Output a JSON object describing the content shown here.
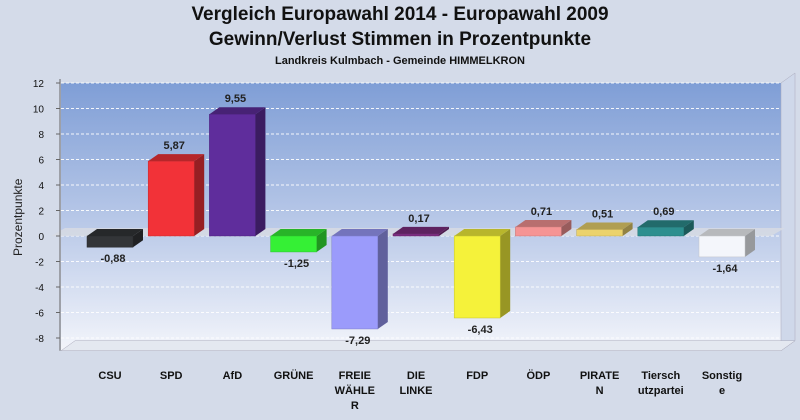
{
  "chart_data": {
    "type": "bar",
    "title": "Vergleich Europawahl 2014 - Europawahl 2009",
    "subtitle": "Gewinn/Verlust Stimmen in Prozentpunkte",
    "caption": "Landkreis Kulmbach - Gemeinde HIMMELKRON",
    "ylabel": "Prozentpunkte",
    "ylim": [
      -9,
      12
    ],
    "yticks": [
      12,
      10,
      8,
      6,
      4,
      2,
      0,
      -2,
      -4,
      -6,
      -8
    ],
    "grid": true,
    "legend": "none",
    "categories": [
      [
        "CSU"
      ],
      [
        "SPD"
      ],
      [
        "AfD"
      ],
      [
        "GRÜNE"
      ],
      [
        "FREIE",
        "WÄHLE",
        "R"
      ],
      [
        "DIE",
        "LINKE"
      ],
      [
        "FDP"
      ],
      [
        "ÖDP"
      ],
      [
        "PIRATE",
        "N"
      ],
      [
        "Tiersch",
        "utzpartei"
      ],
      [
        "Sonstig",
        "e"
      ]
    ],
    "values": [
      -0.88,
      5.87,
      9.55,
      -1.25,
      -7.29,
      0.17,
      -6.43,
      0.71,
      0.51,
      0.69,
      -1.64
    ],
    "value_labels": [
      "-0,88",
      "5,87",
      "9,55",
      "-1,25",
      "-7,29",
      "0,17",
      "-6,43",
      "0,71",
      "0,51",
      "0,69",
      "-1,64"
    ],
    "colors": [
      "#333538",
      "#f23238",
      "#5f2d9c",
      "#35f035",
      "#9b9bfb",
      "#7d2d80",
      "#f5f23a",
      "#f59494",
      "#ebd26c",
      "#2d8f8f",
      "#f4f6fb"
    ]
  }
}
